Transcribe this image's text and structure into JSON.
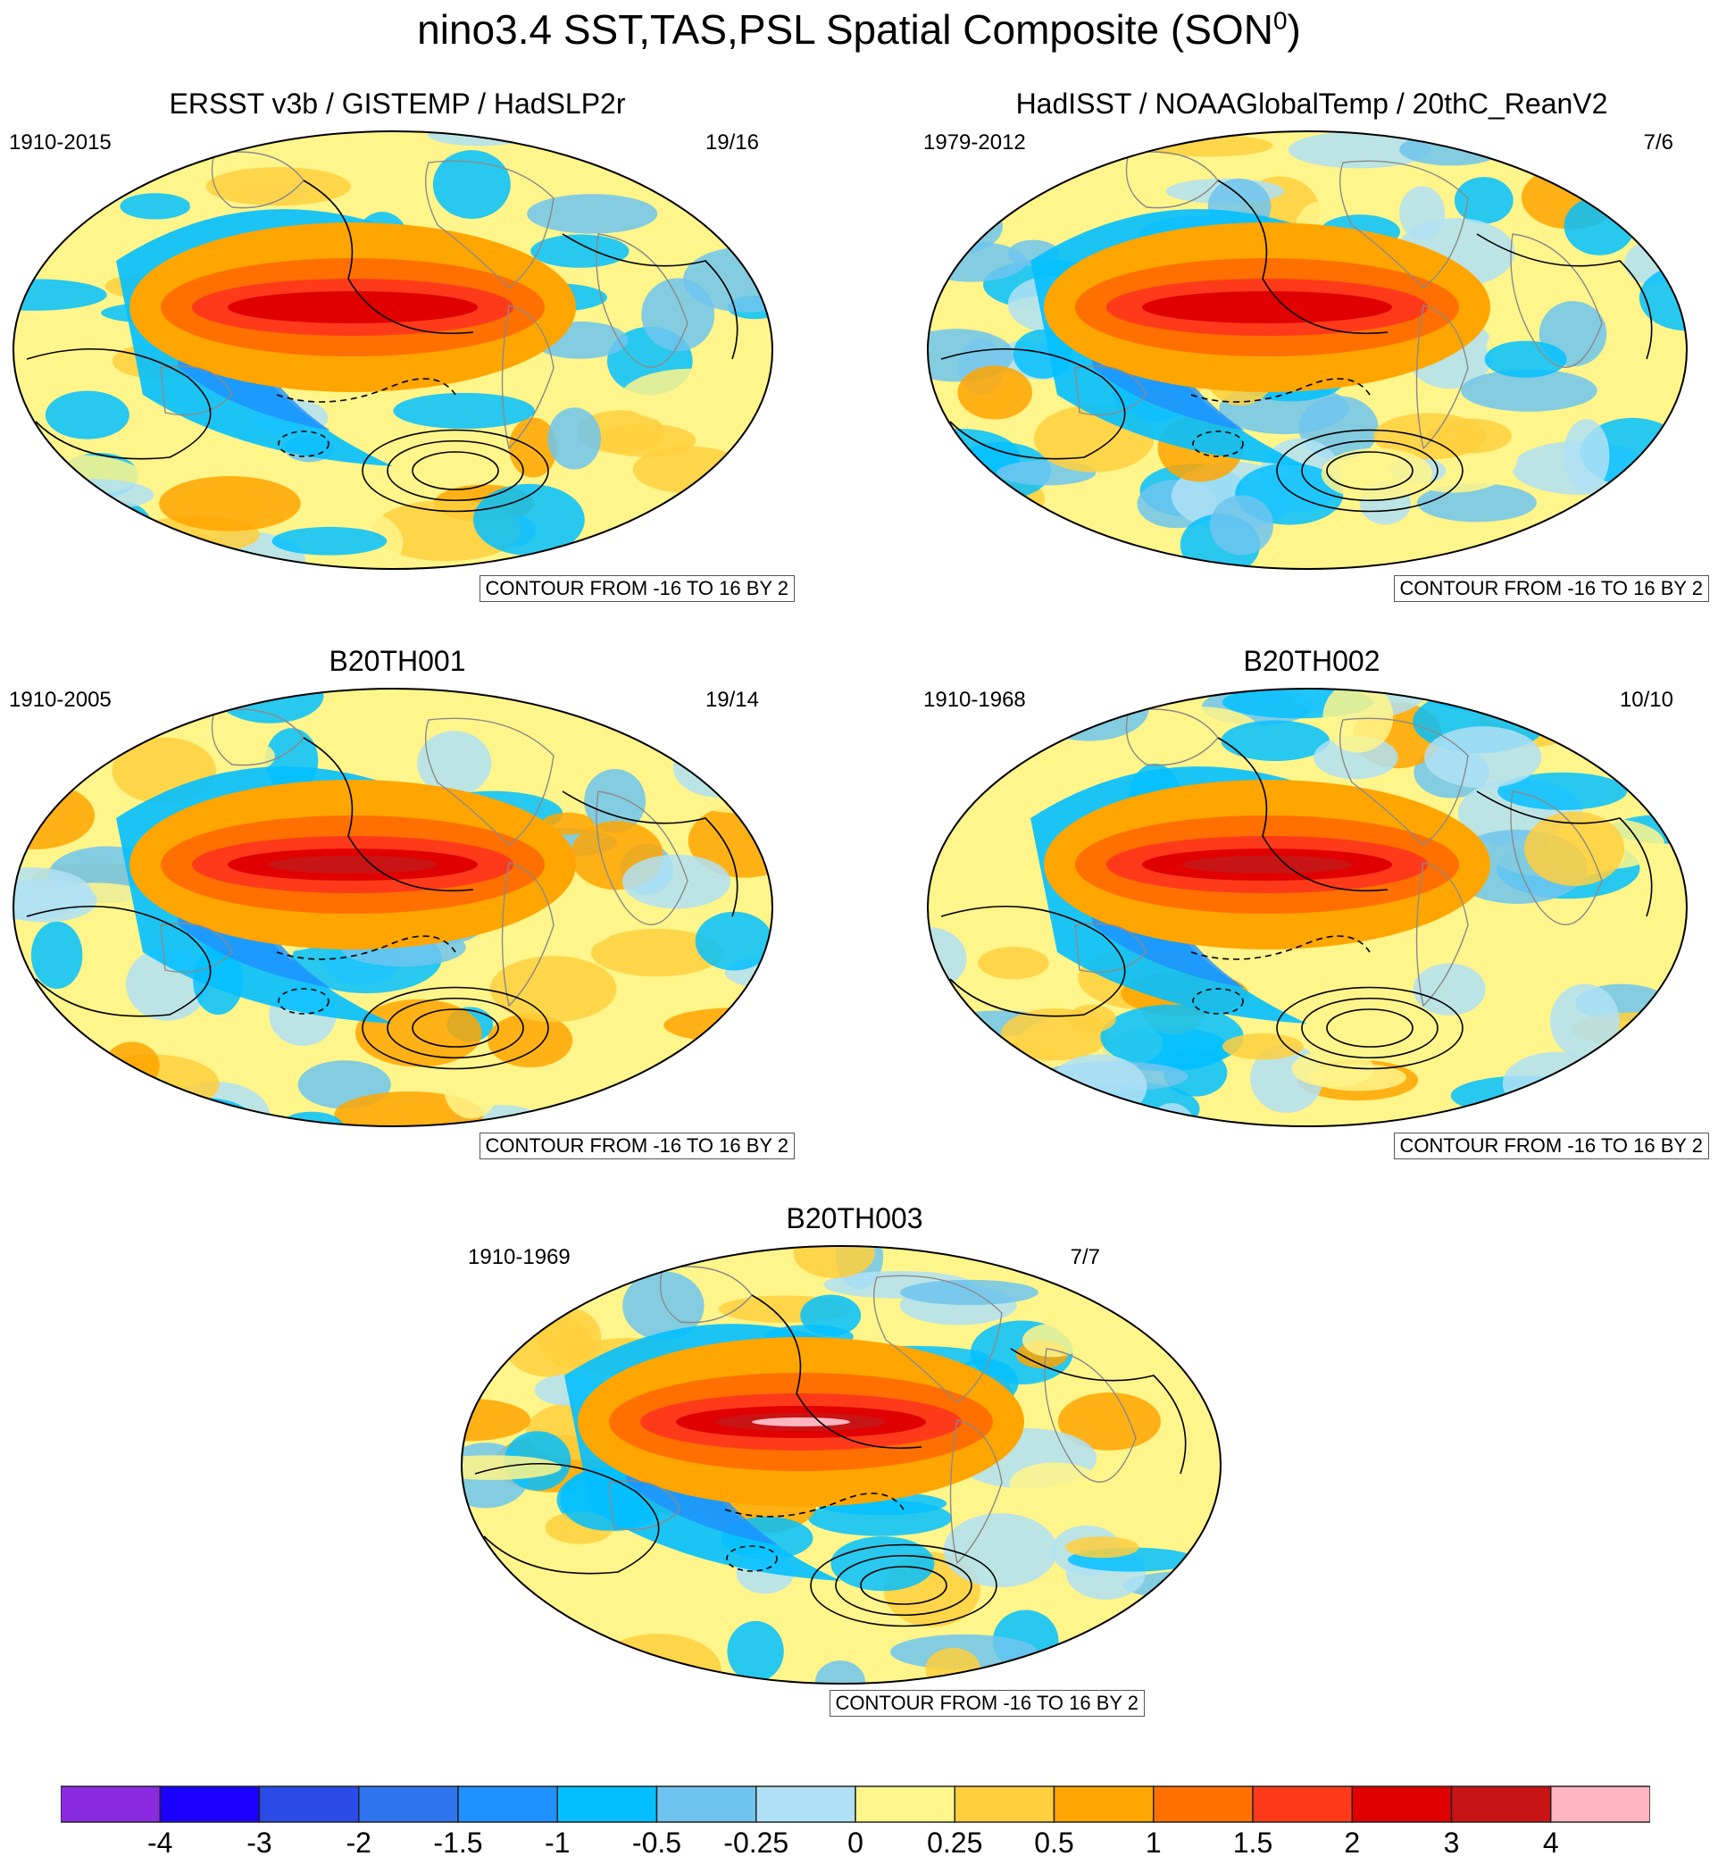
{
  "title": "nino3.4 SST,TAS,PSL Spatial Composite (SON",
  "title_superscript": "0",
  "title_close": ")",
  "panels": [
    {
      "title": "ERSST v3b / GISTEMP / HadSLP2r",
      "years": "1910-2015",
      "count": "19/16",
      "contour_note": "CONTOUR FROM -16 TO 16 BY 2"
    },
    {
      "title": "HadISST / NOAAGlobalTemp / 20thC_ReanV2",
      "years": "1979-2012",
      "count": "7/6",
      "contour_note": "CONTOUR FROM -16 TO 16 BY 2"
    },
    {
      "title": "B20TH001",
      "years": "1910-2005",
      "count": "19/14",
      "contour_note": "CONTOUR FROM -16 TO 16 BY 2"
    },
    {
      "title": "B20TH002",
      "years": "1910-1968",
      "count": "10/10",
      "contour_note": "CONTOUR FROM -16 TO 16 BY 2"
    },
    {
      "title": "B20TH003",
      "years": "1910-1969",
      "count": "7/7",
      "contour_note": "CONTOUR FROM -16 TO 16 BY 2"
    }
  ],
  "chart_data": {
    "type": "heatmap",
    "projection": "robinson (Pacific-centered)",
    "fields": [
      "SST",
      "TAS",
      "PSL"
    ],
    "contour_min": -16,
    "contour_max": 16,
    "contour_interval": 2,
    "colorbar": {
      "orientation": "horizontal",
      "placement": "bottom",
      "labels": [
        "-4",
        "-3",
        "-2",
        "-1.5",
        "-1",
        "-0.5",
        "-0.25",
        "0",
        "0.25",
        "0.5",
        "1",
        "1.5",
        "2",
        "3",
        "4"
      ],
      "colors": [
        "#8a2be2",
        "#1a00ff",
        "#2a4be6",
        "#2e74ef",
        "#1e90ff",
        "#03bfff",
        "#6ec4ef",
        "#b0e0f5",
        "#fff58a",
        "#ffcf3d",
        "#ffa500",
        "#ff7000",
        "#ff3a1a",
        "#e00000",
        "#c81414",
        "#ffb6c1"
      ]
    },
    "maps": [
      {
        "name": "ERSST v3b / GISTEMP / HadSLP2r",
        "enso_max": 2
      },
      {
        "name": "HadISST / NOAAGlobalTemp / 20thC_ReanV2",
        "enso_max": 2
      },
      {
        "name": "B20TH001",
        "enso_max": 3
      },
      {
        "name": "B20TH002",
        "enso_max": 3
      },
      {
        "name": "B20TH003",
        "enso_max": 4
      }
    ]
  }
}
